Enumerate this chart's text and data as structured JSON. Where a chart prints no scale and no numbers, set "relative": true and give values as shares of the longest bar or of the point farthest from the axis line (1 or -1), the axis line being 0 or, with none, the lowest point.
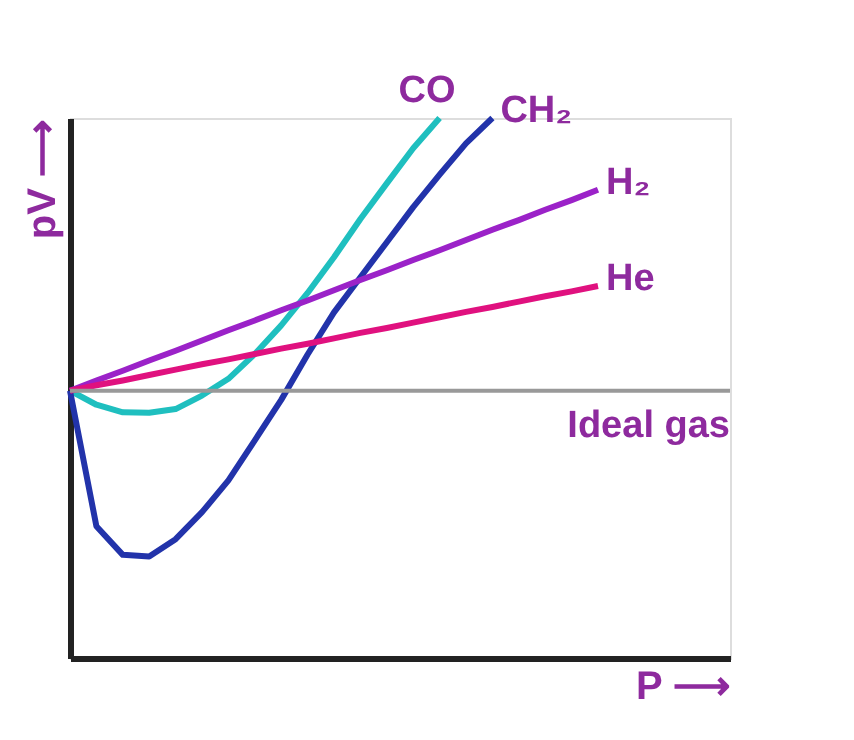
{
  "chart_data": {
    "type": "line",
    "relative": true,
    "xlabel": "P ⟶",
    "ylabel": "pV ⟶",
    "grid": false,
    "legend": false,
    "marker": "none",
    "line_style": "solid",
    "tick_labels": false,
    "categories": [
      null,
      null,
      null,
      null,
      null,
      null,
      null,
      null,
      null,
      null,
      null,
      null,
      null,
      null,
      null,
      null,
      null,
      null,
      null,
      null,
      null,
      null,
      null,
      null,
      null,
      null
    ],
    "series": [
      {
        "name": "CO",
        "color": "#1fbfbf",
        "values": [
          0.495,
          0.469,
          0.455,
          0.454,
          0.461,
          0.486,
          0.517,
          0.563,
          0.616,
          0.676,
          0.742,
          0.813,
          0.879,
          0.944,
          1,
          null,
          null,
          null,
          null,
          null,
          null,
          null,
          null,
          null,
          null,
          null
        ]
      },
      {
        "name": "CH₂",
        "color": "#2233aa",
        "values": [
          0.495,
          0.244,
          0.191,
          0.188,
          0.22,
          0.27,
          0.329,
          0.403,
          0.478,
          0.562,
          0.64,
          0.705,
          0.77,
          0.835,
          0.895,
          0.953,
          1,
          null,
          null,
          null,
          null,
          null,
          null,
          null,
          null,
          null
        ]
      },
      {
        "name": "H₂",
        "color": "#9b22c8",
        "values": [
          0.495,
          0.514,
          0.532,
          0.551,
          0.569,
          0.588,
          0.607,
          0.625,
          0.644,
          0.662,
          0.681,
          0.7,
          0.718,
          0.737,
          0.755,
          0.774,
          0.793,
          0.811,
          0.83,
          0.848,
          0.867,
          null,
          null,
          null,
          null,
          null
        ]
      },
      {
        "name": "He",
        "color": "#e0117f",
        "values": [
          0.495,
          0.505,
          0.514,
          0.524,
          0.534,
          0.544,
          0.553,
          0.563,
          0.573,
          0.582,
          0.592,
          0.602,
          0.611,
          0.621,
          0.631,
          0.641,
          0.65,
          0.66,
          0.67,
          0.679,
          0.689,
          null,
          null,
          null,
          null,
          null
        ]
      }
    ],
    "ref_lines": [
      {
        "axis": "y",
        "value": 0.495,
        "label": "Ideal gas",
        "color": "#999999"
      }
    ]
  }
}
